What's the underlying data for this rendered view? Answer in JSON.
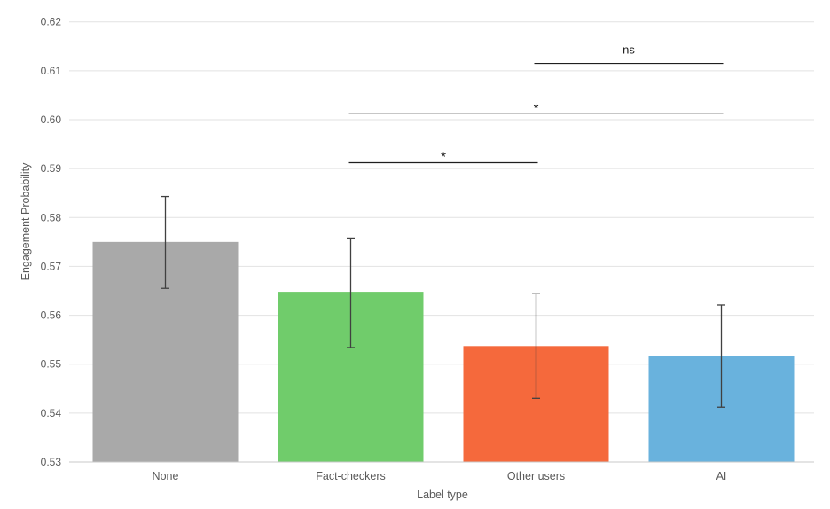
{
  "chart_data": {
    "type": "bar",
    "title": "",
    "xlabel": "Label type",
    "ylabel": "Engagement Probability",
    "categories": [
      "None",
      "Fact-checkers",
      "Other users",
      "AI"
    ],
    "values": [
      0.575,
      0.5648,
      0.5537,
      0.5517
    ],
    "error_low": [
      0.5655,
      0.5534,
      0.543,
      0.5412
    ],
    "error_high": [
      0.5843,
      0.5758,
      0.5644,
      0.5621
    ],
    "bar_colors": [
      "#a9a9a9",
      "#70cc6b",
      "#f5693c",
      "#69b2dd"
    ],
    "ylim": [
      0.53,
      0.62
    ],
    "ytick_step": 0.01,
    "ytick_decimals": 2,
    "grid": true,
    "legend": null,
    "significance": [
      {
        "between": [
          "Fact-checkers",
          "Other users"
        ],
        "label": "*",
        "level": 0.5912
      },
      {
        "between": [
          "Fact-checkers",
          "AI"
        ],
        "label": "*",
        "level": 0.6012
      },
      {
        "between": [
          "Other users",
          "AI"
        ],
        "label": "ns",
        "level": 0.6115
      }
    ],
    "colors": {
      "background": "#ffffff",
      "gridline": "#e2e2e2",
      "axis_line": "#c9c9c9",
      "error_bar": "#404040",
      "sig_line": "#1f1f1f",
      "tick_text": "#595959",
      "sig_text": "#1a1a1a"
    }
  }
}
